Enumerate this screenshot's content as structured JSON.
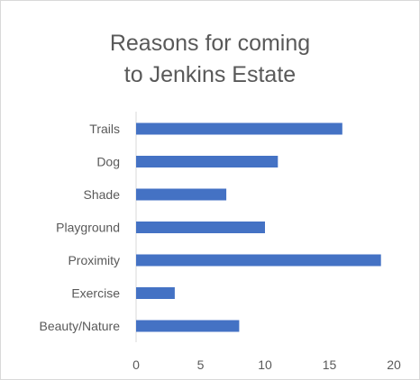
{
  "chart_data": {
    "type": "bar",
    "orientation": "horizontal",
    "title_lines": [
      "Reasons for coming",
      "to Jenkins Estate"
    ],
    "categories": [
      "Trails",
      "Dog",
      "Shade",
      "Playground",
      "Proximity",
      "Exercise",
      "Beauty/Nature"
    ],
    "values": [
      16,
      11,
      7,
      10,
      19,
      3,
      8
    ],
    "xlim": [
      0,
      20
    ],
    "xticks": [
      0,
      5,
      10,
      15,
      20
    ],
    "xlabel": "",
    "ylabel": "",
    "grid": false,
    "legend": "none",
    "bar_color": "#4472C4"
  }
}
